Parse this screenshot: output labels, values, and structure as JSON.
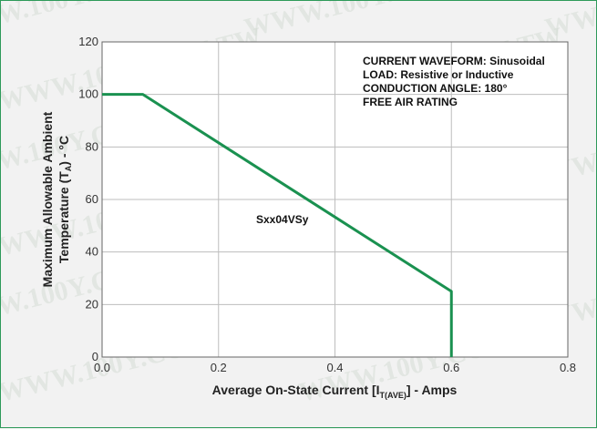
{
  "watermark": "WWW.100Y.COM.TW",
  "chart_data": {
    "type": "line",
    "xlabel": "Average On-State Current [I",
    "xlabel_sub": "T(AVE)",
    "xlabel_tail": "] - Amps",
    "ylabel_line1": "Maximum Allowable Ambient",
    "ylabel_line2_pre": "Temperature (T",
    "ylabel_line2_sub": "A",
    "ylabel_line2_post": ") - °C",
    "xlim": [
      0,
      0.8
    ],
    "ylim": [
      0,
      120
    ],
    "x_ticks": [
      "0.0",
      "0.2",
      "0.4",
      "0.6",
      "0.8"
    ],
    "y_ticks": [
      "0",
      "20",
      "40",
      "60",
      "80",
      "100",
      "120"
    ],
    "grid": true,
    "series": [
      {
        "name": "Sxx04VSy",
        "color": "#1a9150",
        "points": [
          [
            0,
            100
          ],
          [
            0.07,
            100
          ],
          [
            0.6,
            25
          ],
          [
            0.6,
            0
          ]
        ]
      }
    ],
    "annotations": [
      "CURRENT WAVEFORM: Sinusoidal",
      "LOAD: Resistive or Inductive",
      "CONDUCTION ANGLE: 180°",
      "FREE AIR RATING"
    ]
  }
}
